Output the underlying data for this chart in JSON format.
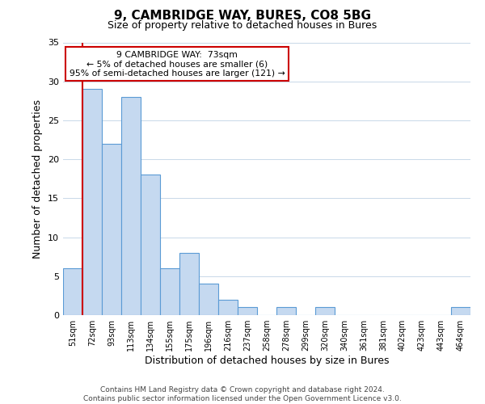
{
  "title": "9, CAMBRIDGE WAY, BURES, CO8 5BG",
  "subtitle": "Size of property relative to detached houses in Bures",
  "xlabel": "Distribution of detached houses by size in Bures",
  "ylabel": "Number of detached properties",
  "bin_labels": [
    "51sqm",
    "72sqm",
    "93sqm",
    "113sqm",
    "134sqm",
    "155sqm",
    "175sqm",
    "196sqm",
    "216sqm",
    "237sqm",
    "258sqm",
    "278sqm",
    "299sqm",
    "320sqm",
    "340sqm",
    "361sqm",
    "381sqm",
    "402sqm",
    "423sqm",
    "443sqm",
    "464sqm"
  ],
  "bar_heights": [
    6,
    29,
    22,
    28,
    18,
    6,
    8,
    4,
    2,
    1,
    0,
    1,
    0,
    1,
    0,
    0,
    0,
    0,
    0,
    0,
    1
  ],
  "bar_color": "#c5d9f0",
  "bar_edge_color": "#5b9bd5",
  "annotation_line1": "9 CAMBRIDGE WAY:  73sqm",
  "annotation_line2": "← 5% of detached houses are smaller (6)",
  "annotation_line3": "95% of semi-detached houses are larger (121) →",
  "annotation_box_color": "#ffffff",
  "annotation_box_edge": "#cc0000",
  "vline_color": "#cc0000",
  "vline_x_index": 1,
  "ylim": [
    0,
    35
  ],
  "yticks": [
    0,
    5,
    10,
    15,
    20,
    25,
    30,
    35
  ],
  "footer_line1": "Contains HM Land Registry data © Crown copyright and database right 2024.",
  "footer_line2": "Contains public sector information licensed under the Open Government Licence v3.0.",
  "background_color": "#ffffff",
  "grid_color": "#c8d8e8"
}
